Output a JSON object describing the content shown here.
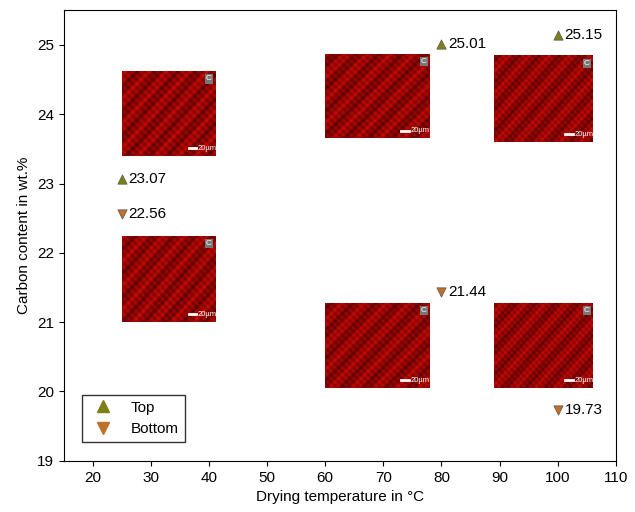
{
  "chart_data": {
    "type": "scatter",
    "x_label": "Drying temperature in °C",
    "y_label": "Carbon content in wt.%",
    "x": [
      25,
      80,
      100
    ],
    "series": [
      {
        "name": "Top",
        "color": "#7f7f1a",
        "marker": "^",
        "values": [
          23.07,
          25.01,
          25.15
        ]
      },
      {
        "name": "Bottom",
        "color": "#c0702a",
        "marker": "v",
        "values": [
          22.56,
          21.44,
          19.73
        ]
      }
    ],
    "data_labels": true,
    "xlim": [
      15,
      110
    ],
    "xticks": [
      20,
      30,
      40,
      50,
      60,
      70,
      80,
      90,
      100,
      110
    ],
    "ylim": [
      19,
      25.5
    ],
    "yticks": [
      19,
      20,
      21,
      22,
      23,
      24,
      25
    ],
    "legend": "lower left",
    "inset_labels": {
      "element": "C",
      "scale_bar": "20µm"
    }
  }
}
